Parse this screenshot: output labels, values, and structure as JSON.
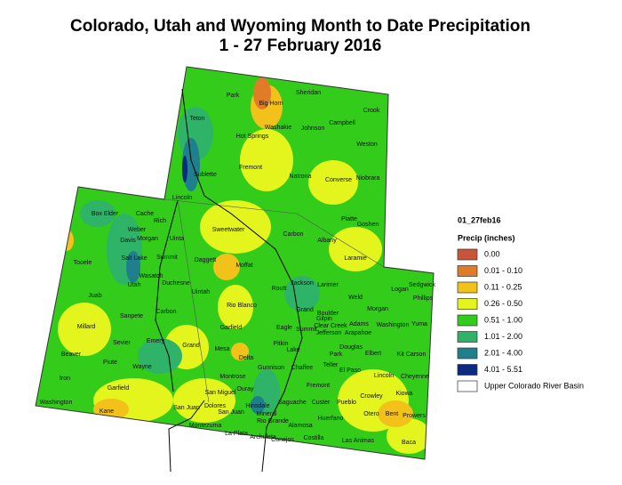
{
  "header": {
    "title_line1": "Colorado, Utah and Wyoming Month to Date Precipitation",
    "title_line2": "1 - 27 February 2016"
  },
  "map": {
    "labels": [
      "Park",
      "Big Horn",
      "Sheridan",
      "Crook",
      "Washakie",
      "Johnson",
      "Campbell",
      "Hot Springs",
      "Teton",
      "Weston",
      "Fremont",
      "Sublette",
      "Natrona",
      "Converse",
      "Niobrara",
      "Lincoln",
      "Platte",
      "Goshen",
      "Sweetwater",
      "Carbon",
      "Albany",
      "Laramie",
      "Box Elder",
      "Cache",
      "Rich",
      "Weber",
      "Morgan",
      "Davis",
      "Uinta",
      "Tooele",
      "Salt Lake",
      "Summit",
      "Daggett",
      "Wasatch",
      "Utah",
      "Duchesne",
      "Uintah",
      "Juab",
      "Sanpete",
      "Carbon",
      "Millard",
      "Emery",
      "Sevier",
      "Grand",
      "Beaver",
      "Piute",
      "Wayne",
      "Iron",
      "Garfield",
      "Washington",
      "Kane",
      "San Juan",
      "Moffat",
      "Routt",
      "Jackson",
      "Larimer",
      "Logan",
      "Sedgwick",
      "Phillips",
      "Weld",
      "Rio Blanco",
      "Grand",
      "Morgan",
      "Boulder",
      "Garfield",
      "Eagle",
      "Summit",
      "Gilpin",
      "Clear Creek",
      "Adams",
      "Washington",
      "Yuma",
      "Jefferson",
      "Arapahoe",
      "Mesa",
      "Pitkin",
      "Lake",
      "Douglas",
      "Delta",
      "Park",
      "Elbert",
      "Kit Carson",
      "Gunnison",
      "Chaffee",
      "Teller",
      "El Paso",
      "Montrose",
      "Lincoln",
      "Cheyenne",
      "Fremont",
      "Ouray",
      "San Miguel",
      "Crowley",
      "Kiowa",
      "Saguache",
      "Custer",
      "Pueblo",
      "Hinsdale",
      "Dolores",
      "San Juan",
      "Mineral",
      "Otero",
      "Bent",
      "Prowers",
      "Rio Grande",
      "Huerfano",
      "Montezuma",
      "La Plata",
      "Alamosa",
      "Archuleta",
      "Conejos",
      "Costilla",
      "Las Animas",
      "Baca"
    ]
  },
  "legend": {
    "title": "01_27feb16",
    "subtitle": "Precip (inches)",
    "items": [
      {
        "label": "0.00",
        "color": "#c8543c"
      },
      {
        "label": "0.01 - 0.10",
        "color": "#e07b27"
      },
      {
        "label": "0.11 - 0.25",
        "color": "#f2c21a"
      },
      {
        "label": "0.26 - 0.50",
        "color": "#e3f51c"
      },
      {
        "label": "0.51 - 1.00",
        "color": "#33cc1a"
      },
      {
        "label": "1.01 - 2.00",
        "color": "#2eb368"
      },
      {
        "label": "2.01 - 4.00",
        "color": "#1f7f8c"
      },
      {
        "label": "4.01 - 5.51",
        "color": "#0b2a80"
      },
      {
        "label": "Upper Colorado River Basin",
        "color": "#ffffff"
      }
    ]
  }
}
